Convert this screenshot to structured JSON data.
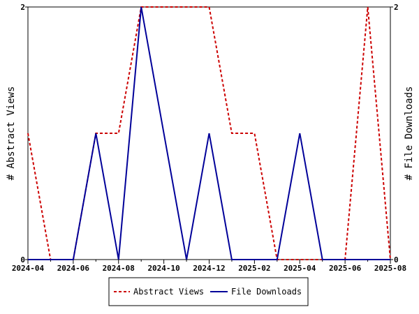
{
  "chart_data": {
    "type": "line",
    "x": [
      "2024-04",
      "2024-05",
      "2024-06",
      "2024-07",
      "2024-08",
      "2024-09",
      "2024-10",
      "2024-11",
      "2024-12",
      "2025-01",
      "2025-02",
      "2025-03",
      "2025-04",
      "2025-05",
      "2025-06",
      "2025-07",
      "2025-08"
    ],
    "x_tick_labels": [
      "2024-04",
      "2024-06",
      "2024-08",
      "2024-10",
      "2024-12",
      "2025-02",
      "2025-04",
      "2025-06",
      "2025-08"
    ],
    "series": [
      {
        "name": "Abstract Views",
        "axis": "left",
        "color": "#cc0000",
        "dash": "dashed",
        "values": [
          1,
          0,
          0,
          1,
          1,
          2,
          2,
          2,
          2,
          1,
          1,
          0,
          0,
          0,
          0,
          2,
          0
        ]
      },
      {
        "name": "File Downloads",
        "axis": "right",
        "color": "#000099",
        "dash": "solid",
        "values": [
          0,
          0,
          0,
          1,
          0,
          2,
          1,
          0,
          1,
          0,
          0,
          0,
          1,
          0,
          0,
          0,
          0
        ]
      }
    ],
    "ylabel_left": "# Abstract Views",
    "ylabel_right": "# File Downloads",
    "ylim_left": [
      0,
      2
    ],
    "ylim_right": [
      0,
      2
    ],
    "y_tick_labels_left": [
      "0",
      "2"
    ],
    "y_tick_labels_right": [
      "0",
      "2"
    ],
    "grid": false,
    "legend_position": "bottom-center"
  }
}
